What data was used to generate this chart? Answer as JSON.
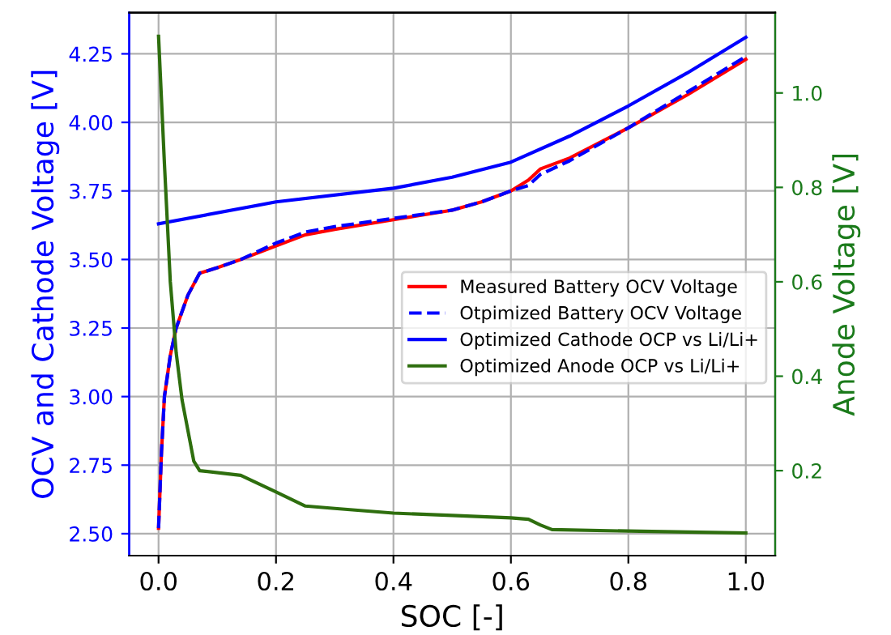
{
  "chart_data": {
    "type": "line",
    "xlabel": "SOC [-]",
    "ylabel": "OCV and Cathode Voltage [V]",
    "y2label": "Anode Voltage [V]",
    "xlim": [
      -0.05,
      1.05
    ],
    "xticks": [
      {
        "value": 0,
        "label": "0.0"
      },
      0.2,
      0.4,
      0.6,
      0.8,
      {
        "value": 1,
        "label": "1.0"
      }
    ],
    "ylim": [
      2.42,
      4.4
    ],
    "yticks": [
      {
        "value": 2.5,
        "label": "2.50"
      },
      2.75,
      {
        "value": 3,
        "label": "3.00"
      },
      3.25,
      {
        "value": 3.5,
        "label": "3.50"
      },
      3.75,
      {
        "value": 4,
        "label": "4.00"
      },
      4.25
    ],
    "y2lim": [
      0.02,
      1.17
    ],
    "y2ticks": [
      0.2,
      0.4,
      0.6,
      0.8,
      {
        "value": 1,
        "label": "1.0"
      }
    ],
    "grid": true,
    "legend": "right",
    "line_style": "solid",
    "marker": "none",
    "series": [
      {
        "name": "Measured Battery OCV Voltage",
        "color": "#ff0000",
        "x": [
          0,
          0.005,
          0.01,
          0.02,
          0.03,
          0.05,
          0.07,
          0.1,
          0.14,
          0.2,
          0.25,
          0.3,
          0.4,
          0.5,
          0.55,
          0.6,
          0.63,
          0.65,
          0.7,
          0.8,
          0.9,
          1.0
        ],
        "values": [
          2.52,
          2.8,
          3.0,
          3.15,
          3.25,
          3.37,
          3.45,
          3.47,
          3.5,
          3.55,
          3.59,
          3.61,
          3.645,
          3.68,
          3.71,
          3.75,
          3.79,
          3.83,
          3.87,
          3.98,
          4.1,
          4.23
        ]
      },
      {
        "name": "Otpimized Battery OCV Voltage",
        "color": "#0000ff",
        "line_style": "dashed",
        "x": [
          0,
          0.005,
          0.01,
          0.02,
          0.03,
          0.05,
          0.07,
          0.1,
          0.14,
          0.2,
          0.25,
          0.3,
          0.4,
          0.5,
          0.55,
          0.6,
          0.63,
          0.65,
          0.7,
          0.8,
          0.9,
          1.0
        ],
        "values": [
          2.52,
          2.8,
          3.0,
          3.15,
          3.25,
          3.37,
          3.45,
          3.47,
          3.5,
          3.56,
          3.6,
          3.62,
          3.65,
          3.68,
          3.71,
          3.75,
          3.77,
          3.81,
          3.86,
          3.98,
          4.11,
          4.24
        ]
      },
      {
        "name": "Optimized Cathode OCP vs Li/Li+",
        "color": "#0000ff",
        "x": [
          0,
          0.2,
          0.4,
          0.5,
          0.6,
          0.7,
          0.8,
          0.9,
          1.0
        ],
        "values": [
          3.63,
          3.71,
          3.76,
          3.8,
          3.855,
          3.95,
          4.06,
          4.18,
          4.31
        ]
      },
      {
        "name": "Optimized Anode OCP vs Li/Li+",
        "color": "#2e6e0e",
        "axis": "y2",
        "x": [
          0,
          0.01,
          0.02,
          0.03,
          0.04,
          0.06,
          0.07,
          0.14,
          0.2,
          0.25,
          0.3,
          0.4,
          0.5,
          0.6,
          0.63,
          0.65,
          0.67,
          0.8,
          1.0
        ],
        "values": [
          1.12,
          0.85,
          0.6,
          0.45,
          0.35,
          0.22,
          0.2,
          0.19,
          0.155,
          0.125,
          0.12,
          0.11,
          0.105,
          0.1,
          0.097,
          0.085,
          0.075,
          0.072,
          0.068
        ]
      }
    ]
  }
}
